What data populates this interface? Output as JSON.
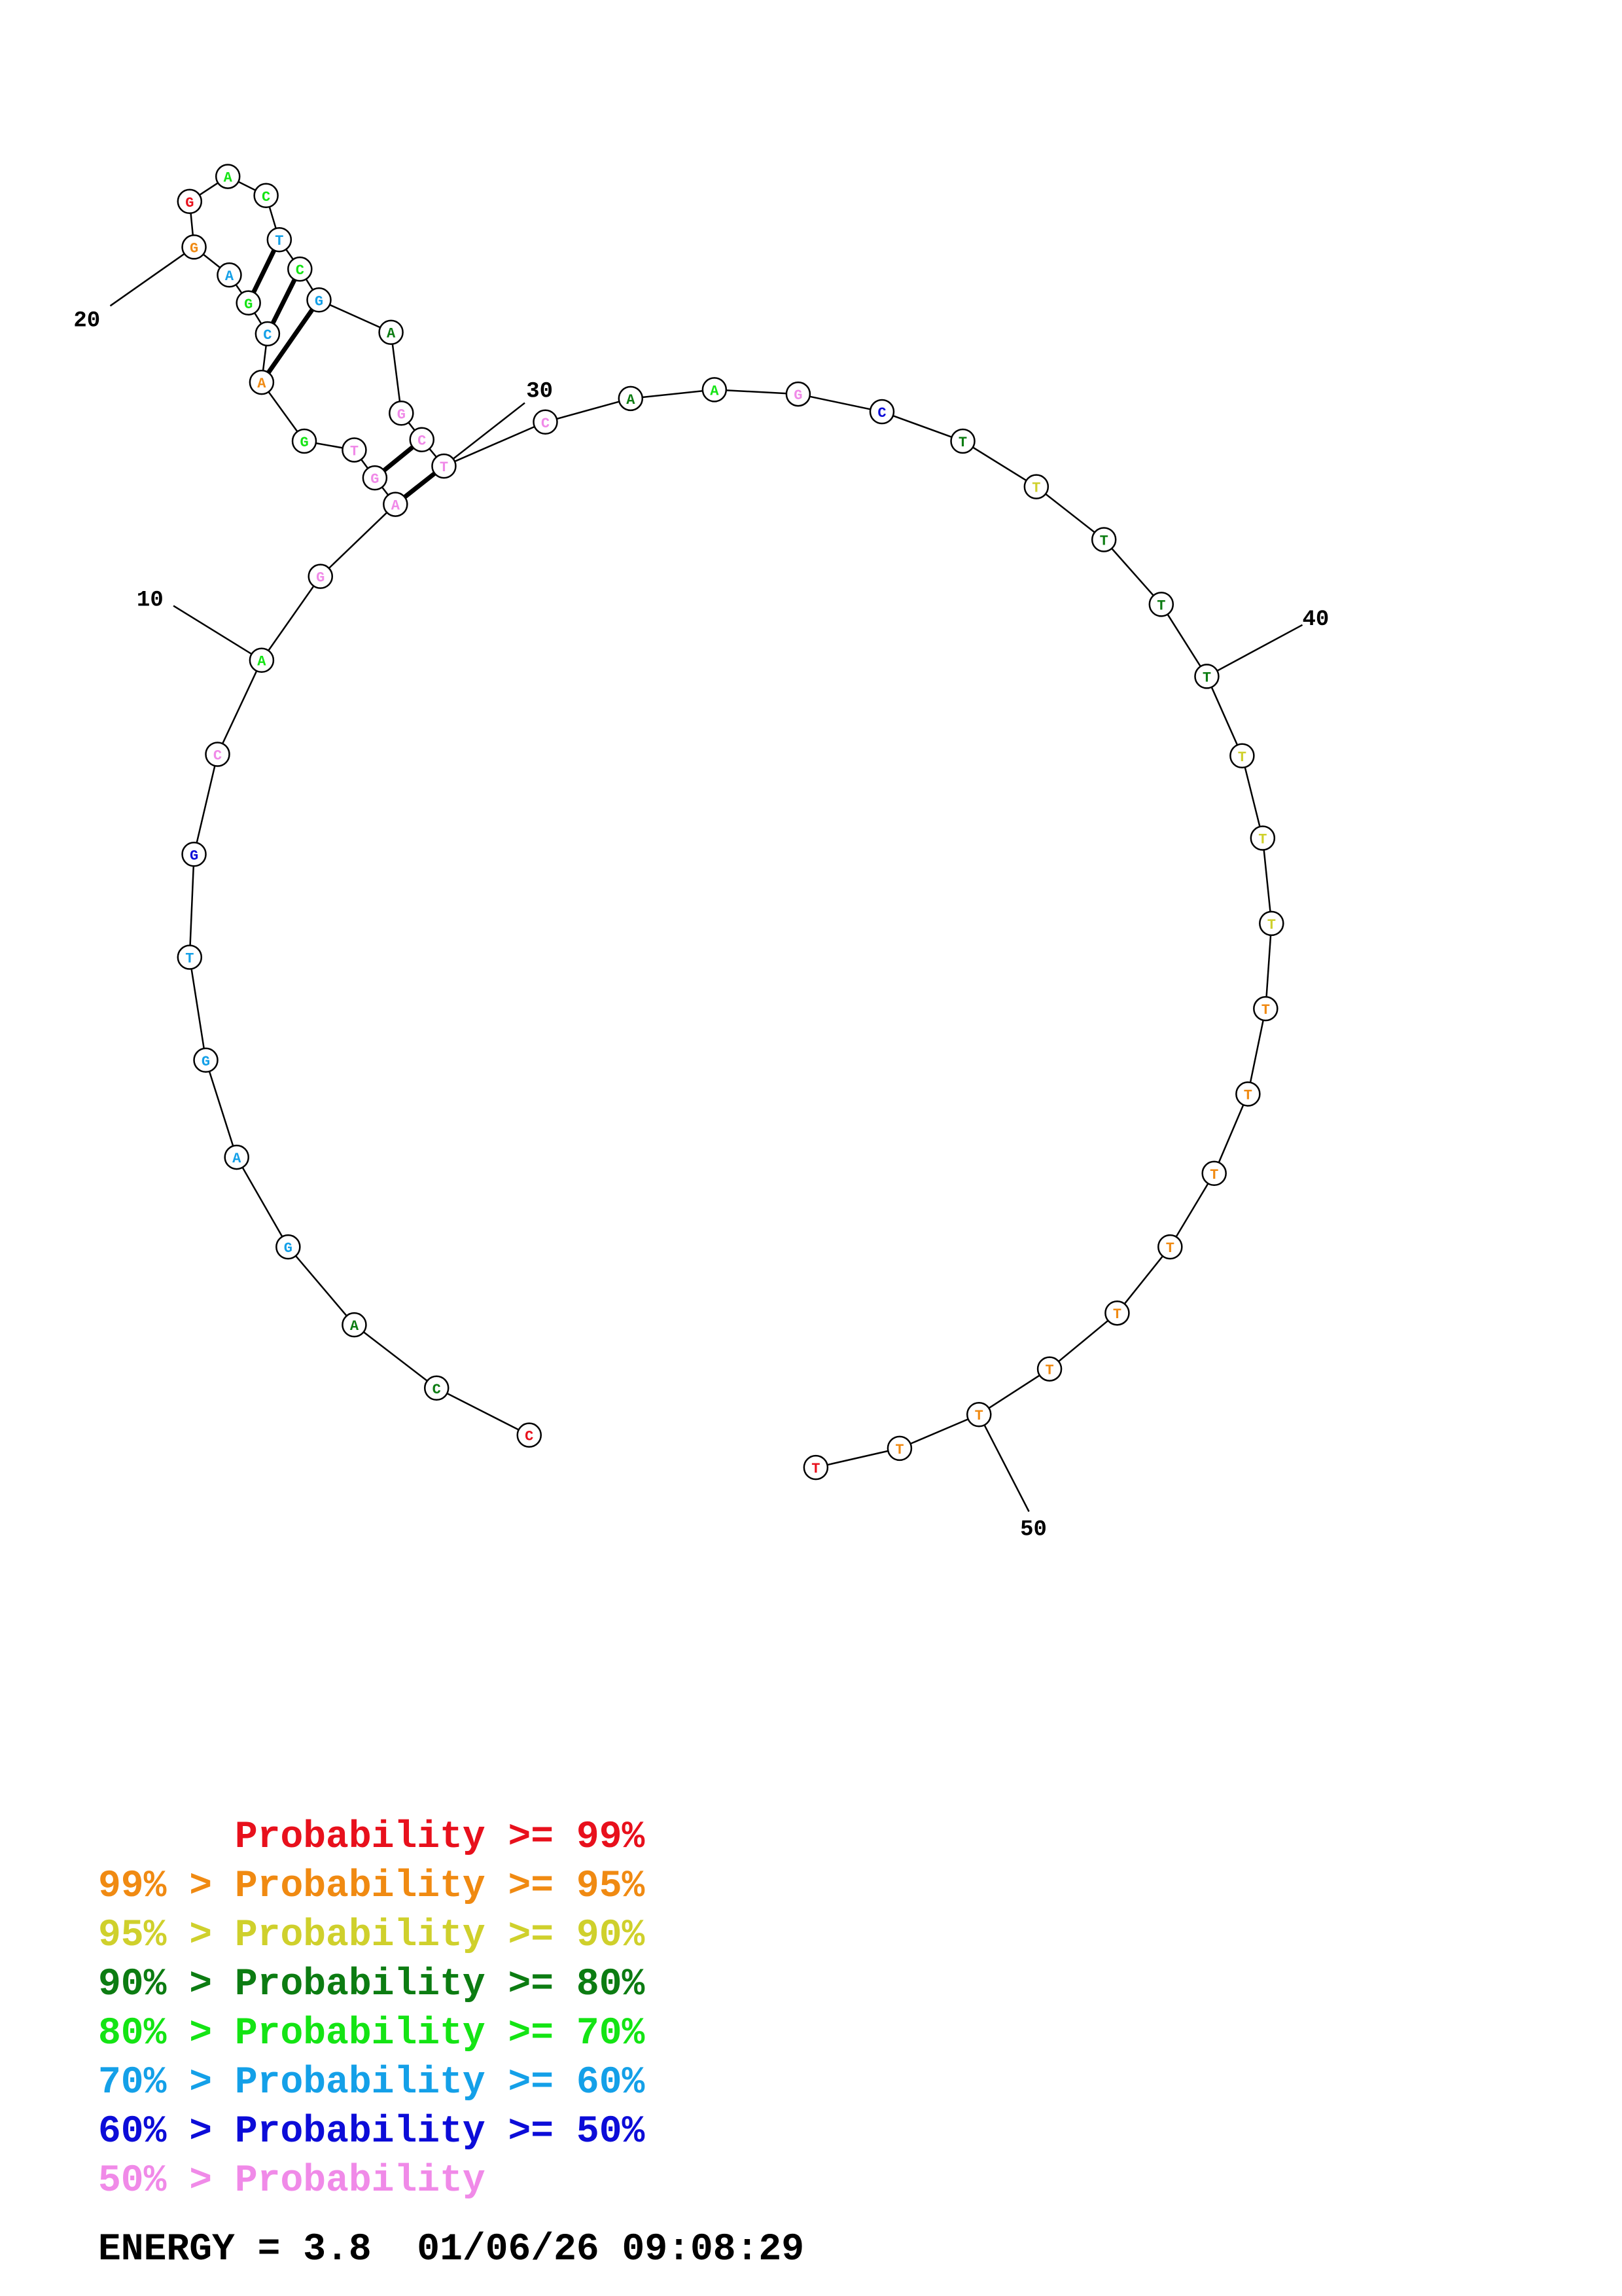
{
  "colors": {
    "p99": "#e8101c",
    "p95": "#f08a12",
    "p90": "#cfd02c",
    "p80": "#0c7c12",
    "p70": "#14e414",
    "p60": "#14a0e8",
    "p50": "#0c0cd8",
    "plow": "#f08ae8"
  },
  "nucleotides": [
    {
      "base": "C",
      "prob": "p99"
    },
    {
      "base": "C",
      "prob": "p80"
    },
    {
      "base": "A",
      "prob": "p80"
    },
    {
      "base": "G",
      "prob": "p60"
    },
    {
      "base": "A",
      "prob": "p60"
    },
    {
      "base": "G",
      "prob": "p60"
    },
    {
      "base": "T",
      "prob": "p60"
    },
    {
      "base": "G",
      "prob": "p50"
    },
    {
      "base": "C",
      "prob": "plow"
    },
    {
      "base": "A",
      "prob": "p70"
    },
    {
      "base": "G",
      "prob": "plow"
    },
    {
      "base": "A",
      "prob": "plow"
    },
    {
      "base": "G",
      "prob": "plow"
    },
    {
      "base": "T",
      "prob": "plow"
    },
    {
      "base": "G",
      "prob": "p70"
    },
    {
      "base": "A",
      "prob": "p95"
    },
    {
      "base": "C",
      "prob": "p60"
    },
    {
      "base": "G",
      "prob": "p70"
    },
    {
      "base": "A",
      "prob": "p60"
    },
    {
      "base": "G",
      "prob": "p95"
    },
    {
      "base": "G",
      "prob": "p99"
    },
    {
      "base": "A",
      "prob": "p70"
    },
    {
      "base": "C",
      "prob": "p70"
    },
    {
      "base": "T",
      "prob": "p60"
    },
    {
      "base": "C",
      "prob": "p70"
    },
    {
      "base": "G",
      "prob": "p60"
    },
    {
      "base": "A",
      "prob": "p80"
    },
    {
      "base": "G",
      "prob": "plow"
    },
    {
      "base": "C",
      "prob": "plow"
    },
    {
      "base": "T",
      "prob": "plow"
    },
    {
      "base": "C",
      "prob": "plow"
    },
    {
      "base": "A",
      "prob": "p80"
    },
    {
      "base": "A",
      "prob": "p70"
    },
    {
      "base": "G",
      "prob": "plow"
    },
    {
      "base": "C",
      "prob": "p50"
    },
    {
      "base": "T",
      "prob": "p80"
    },
    {
      "base": "T",
      "prob": "p90"
    },
    {
      "base": "T",
      "prob": "p80"
    },
    {
      "base": "T",
      "prob": "p80"
    },
    {
      "base": "T",
      "prob": "p80"
    },
    {
      "base": "T",
      "prob": "p90"
    },
    {
      "base": "T",
      "prob": "p90"
    },
    {
      "base": "T",
      "prob": "p90"
    },
    {
      "base": "T",
      "prob": "p95"
    },
    {
      "base": "T",
      "prob": "p95"
    },
    {
      "base": "T",
      "prob": "p95"
    },
    {
      "base": "T",
      "prob": "p95"
    },
    {
      "base": "T",
      "prob": "p95"
    },
    {
      "base": "T",
      "prob": "p95"
    },
    {
      "base": "T",
      "prob": "p95"
    },
    {
      "base": "T",
      "prob": "p95"
    },
    {
      "base": "T",
      "prob": "p99"
    }
  ],
  "base_pairs": [
    [
      12,
      30
    ],
    [
      13,
      29
    ],
    [
      16,
      26
    ],
    [
      17,
      25
    ],
    [
      18,
      24
    ]
  ],
  "position_labels": [
    "10",
    "20",
    "30",
    "40",
    "50"
  ],
  "legend": [
    {
      "lhs": "",
      "gt": "",
      "word": "Probability",
      "ge": ">=",
      "pct": "99%",
      "color": "p99"
    },
    {
      "lhs": "99%",
      "gt": ">",
      "word": "Probability",
      "ge": ">=",
      "pct": "95%",
      "color": "p95"
    },
    {
      "lhs": "95%",
      "gt": ">",
      "word": "Probability",
      "ge": ">=",
      "pct": "90%",
      "color": "p90"
    },
    {
      "lhs": "90%",
      "gt": ">",
      "word": "Probability",
      "ge": ">=",
      "pct": "80%",
      "color": "p80"
    },
    {
      "lhs": "80%",
      "gt": ">",
      "word": "Probability",
      "ge": ">=",
      "pct": "70%",
      "color": "p70"
    },
    {
      "lhs": "70%",
      "gt": ">",
      "word": "Probability",
      "ge": ">=",
      "pct": "60%",
      "color": "p60"
    },
    {
      "lhs": "60%",
      "gt": ">",
      "word": "Probability",
      "ge": ">=",
      "pct": "50%",
      "color": "p50"
    },
    {
      "lhs": "50%",
      "gt": ">",
      "word": "Probability",
      "ge": "",
      "pct": "",
      "color": "plow"
    }
  ],
  "energy_label": "ENERGY = 3.8",
  "timestamp": "01/06/26 09:08:29"
}
